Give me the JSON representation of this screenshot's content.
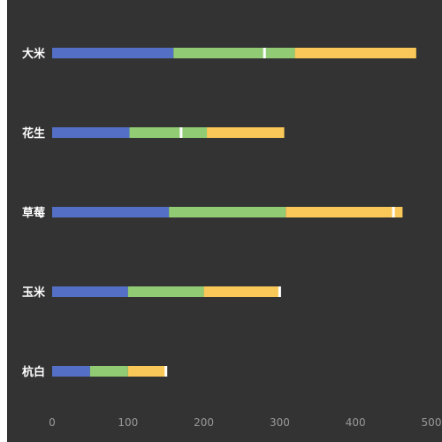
{
  "chart_data": {
    "type": "bar",
    "orientation": "horizontal",
    "stacked": true,
    "categories": [
      "大米",
      "花生",
      "草莓",
      "玉米",
      "杭白"
    ],
    "series": [
      {
        "color": "#5470c6",
        "values": [
          160,
          102,
          154,
          100,
          50
        ]
      },
      {
        "color": "#91cc75",
        "values": [
          160,
          102,
          154,
          100,
          50
        ]
      },
      {
        "color": "#fac858",
        "values": [
          160,
          102,
          154,
          100,
          50
        ]
      }
    ],
    "markers": [
      280,
      170,
      450,
      300,
      150
    ],
    "marker_color": "#ffffff",
    "xlim": [
      0,
      500
    ],
    "xticks": [
      "0",
      "100",
      "200",
      "300",
      "400",
      "500"
    ],
    "grid": false,
    "legend": "none"
  }
}
